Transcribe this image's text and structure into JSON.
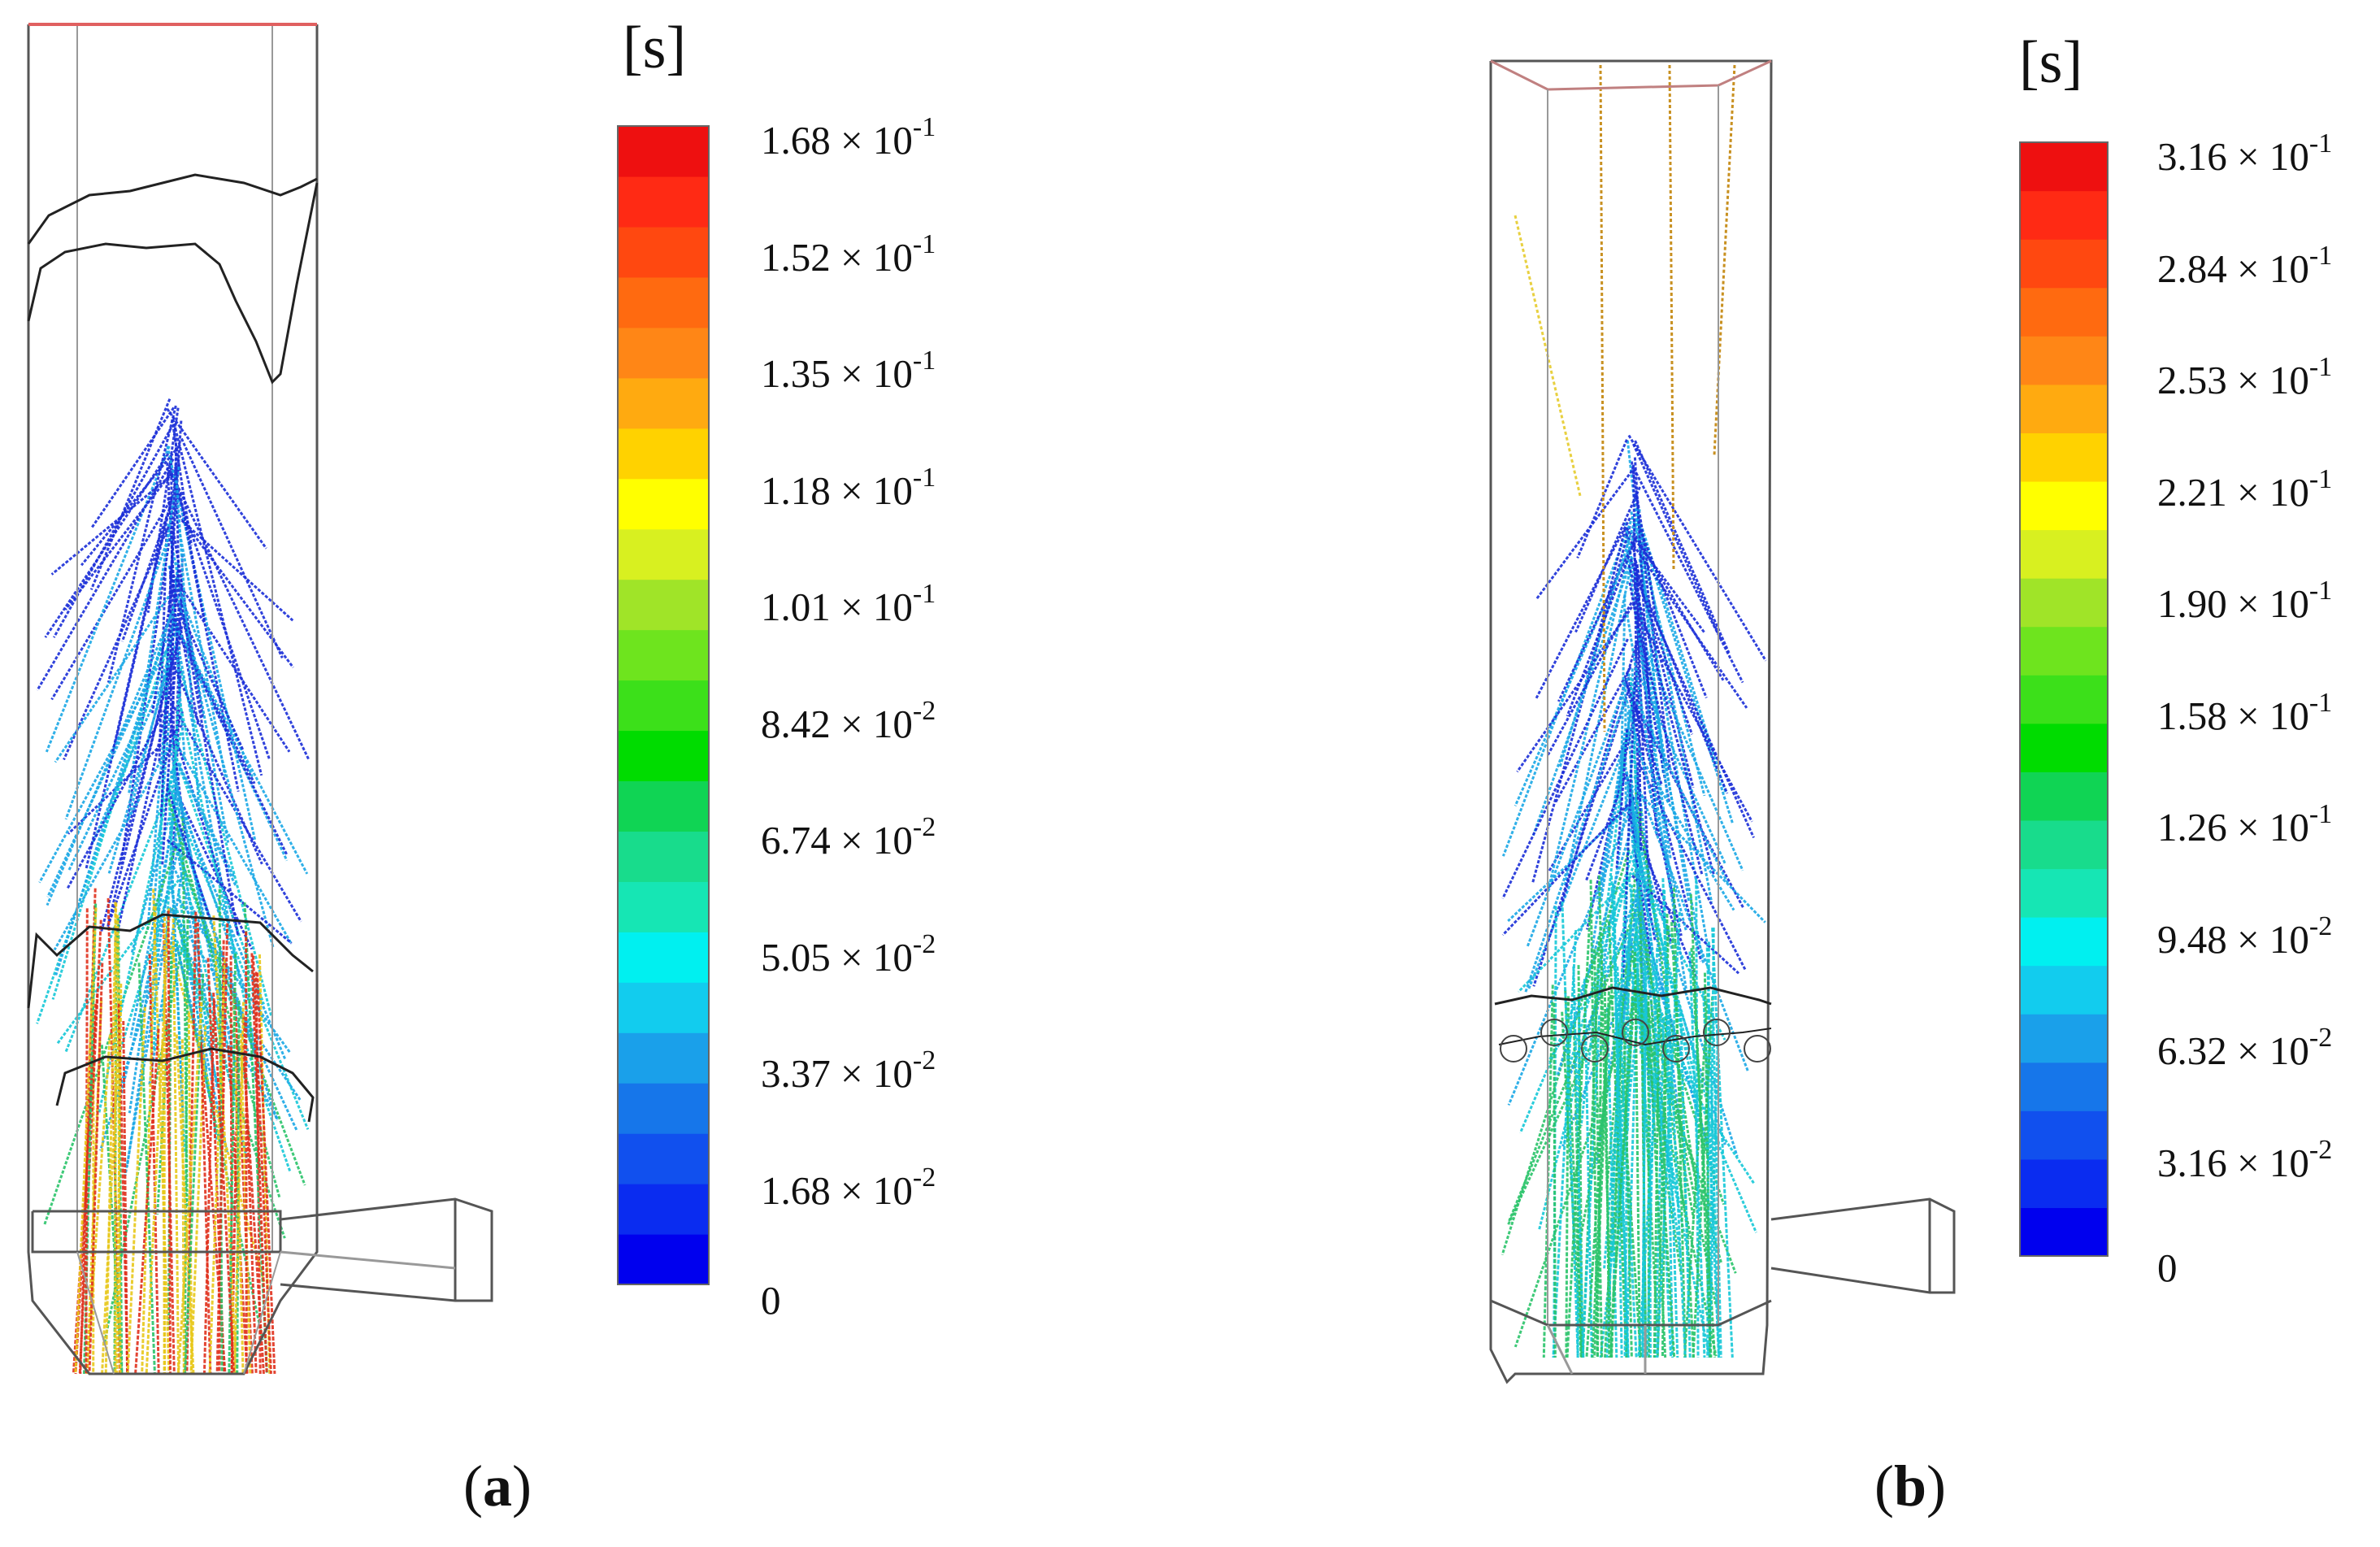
{
  "panels": [
    {
      "caption_letter": "a",
      "unit": "[s]",
      "colorbar_labels": [
        {
          "mantissa": "1.68",
          "exponent": "-1"
        },
        {
          "mantissa": "1.52",
          "exponent": "-1"
        },
        {
          "mantissa": "1.35",
          "exponent": "-1"
        },
        {
          "mantissa": "1.18",
          "exponent": "-1"
        },
        {
          "mantissa": "1.01",
          "exponent": "-1"
        },
        {
          "mantissa": "8.42",
          "exponent": "-2"
        },
        {
          "mantissa": "6.74",
          "exponent": "-2"
        },
        {
          "mantissa": "5.05",
          "exponent": "-2"
        },
        {
          "mantissa": "3.37",
          "exponent": "-2"
        },
        {
          "mantissa": "1.68",
          "exponent": "-2"
        },
        {
          "mantissa": "0",
          "exponent": ""
        }
      ]
    },
    {
      "caption_letter": "b",
      "unit": "[s]",
      "colorbar_labels": [
        {
          "mantissa": "3.16",
          "exponent": "-1"
        },
        {
          "mantissa": "2.84",
          "exponent": "-1"
        },
        {
          "mantissa": "2.53",
          "exponent": "-1"
        },
        {
          "mantissa": "2.21",
          "exponent": "-1"
        },
        {
          "mantissa": "1.90",
          "exponent": "-1"
        },
        {
          "mantissa": "1.58",
          "exponent": "-1"
        },
        {
          "mantissa": "1.26",
          "exponent": "-1"
        },
        {
          "mantissa": "9.48",
          "exponent": "-2"
        },
        {
          "mantissa": "6.32",
          "exponent": "-2"
        },
        {
          "mantissa": "3.16",
          "exponent": "-2"
        },
        {
          "mantissa": "0",
          "exponent": ""
        }
      ]
    }
  ],
  "colormap": [
    "#0000ee",
    "#0a2cf0",
    "#1150ee",
    "#1676ea",
    "#1aa0ea",
    "#12ccee",
    "#00f0f0",
    "#16e6b4",
    "#18dc8c",
    "#10d454",
    "#00dc00",
    "#3ce01a",
    "#6ee41e",
    "#a0e428",
    "#d8f020",
    "#ffff00",
    "#ffd200",
    "#ffaa10",
    "#ff8616",
    "#ff6a10",
    "#ff4810",
    "#ff2a14",
    "#ee1010"
  ],
  "streak_colors": {
    "near": "#1a2ed8",
    "mid": "#1aa8e6",
    "far": "#16c8d8",
    "late": "#2ac46a",
    "hot": "#e8c81a",
    "hottest": "#e0301c"
  }
}
